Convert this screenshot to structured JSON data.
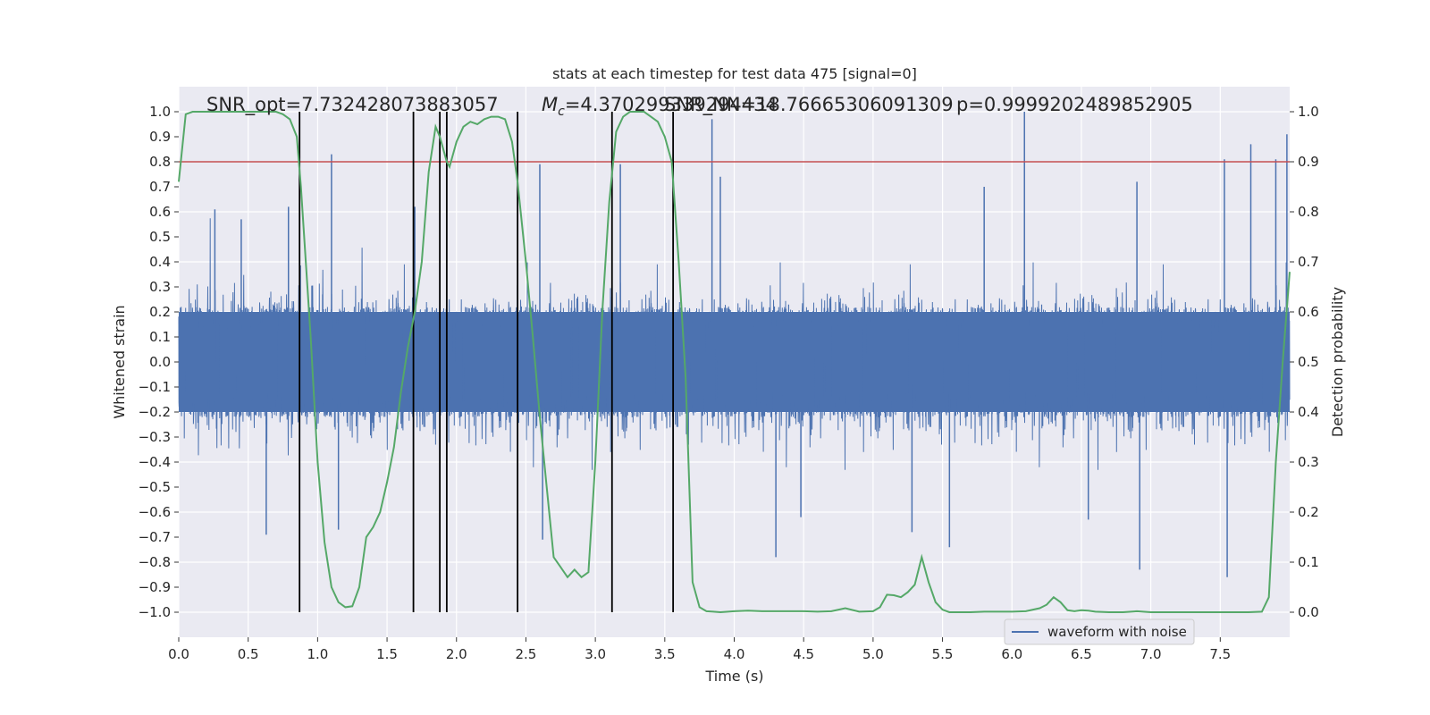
{
  "chart_data": {
    "type": "line",
    "title": "stats at each timestep for test data 475 [signal=0]",
    "xlabel": "Time (s)",
    "ylabel": "Whitened strain",
    "ylabel_right": "Detection probability",
    "xlim": [
      0.0,
      8.0
    ],
    "ylim": [
      -1.1,
      1.1
    ],
    "ylim_right": [
      -0.05,
      1.05
    ],
    "x_ticks": [
      "0.0",
      "0.5",
      "1.0",
      "1.5",
      "2.0",
      "2.5",
      "3.0",
      "3.5",
      "4.0",
      "4.5",
      "5.0",
      "5.5",
      "6.0",
      "6.5",
      "7.0",
      "7.5"
    ],
    "y_ticks": [
      "1.0",
      "0.9",
      "0.8",
      "0.7",
      "0.6",
      "0.5",
      "0.4",
      "0.3",
      "0.2",
      "0.1",
      "0.0",
      "−0.1",
      "−0.2",
      "−0.3",
      "−0.4",
      "−0.5",
      "−0.6",
      "−0.7",
      "−0.8",
      "−0.9",
      "−1.0"
    ],
    "y_ticks_right": [
      "1.0",
      "0.9",
      "0.8",
      "0.7",
      "0.6",
      "0.5",
      "0.4",
      "0.3",
      "0.2",
      "0.1",
      "0.0"
    ],
    "annotations": {
      "snr_opt": "SNR_opt=7.732428073883057",
      "mc_symbol": "M",
      "mc_sub": "c",
      "mc_value": "=4.370299339294434",
      "snr_nn": "SNR_NN=18.76665306091309",
      "p": "p=0.9999202489852905"
    },
    "legend": {
      "label": "waveform with noise",
      "placement": "lower-right"
    },
    "threshold": {
      "value": 0.9,
      "axis": "right",
      "color": "#c44e52"
    },
    "vertical_lines": [
      0.87,
      1.69,
      1.88,
      1.93,
      2.44,
      3.12,
      3.56
    ],
    "vertical_line_range": [
      -1.0,
      1.0
    ],
    "noise": {
      "name": "waveform with noise",
      "color": "#4c72b0",
      "duration": 8.0,
      "core_amplitude": 0.2,
      "typical_amplitude": 0.35,
      "spikes": [
        {
          "x": 0.26,
          "y": 0.61
        },
        {
          "x": 0.45,
          "y": 0.57
        },
        {
          "x": 0.79,
          "y": 0.62
        },
        {
          "x": 1.1,
          "y": 0.83
        },
        {
          "x": 1.7,
          "y": 0.62
        },
        {
          "x": 2.6,
          "y": 0.79
        },
        {
          "x": 3.18,
          "y": 0.79
        },
        {
          "x": 3.84,
          "y": 0.97
        },
        {
          "x": 6.09,
          "y": 1.0
        },
        {
          "x": 7.53,
          "y": 0.81
        },
        {
          "x": 7.72,
          "y": 0.87
        },
        {
          "x": 7.9,
          "y": 0.81
        },
        {
          "x": 7.98,
          "y": 0.91
        },
        {
          "x": 3.9,
          "y": 0.74
        },
        {
          "x": 5.8,
          "y": 0.7
        },
        {
          "x": 6.9,
          "y": 0.72
        },
        {
          "x": 4.3,
          "y": -0.78
        },
        {
          "x": 5.55,
          "y": -0.74
        },
        {
          "x": 6.92,
          "y": -0.83
        },
        {
          "x": 7.55,
          "y": -0.86
        },
        {
          "x": 0.63,
          "y": -0.69
        },
        {
          "x": 1.15,
          "y": -0.67
        },
        {
          "x": 2.62,
          "y": -0.71
        },
        {
          "x": 4.48,
          "y": -0.62
        },
        {
          "x": 5.28,
          "y": -0.68
        },
        {
          "x": 6.55,
          "y": -0.63
        }
      ]
    },
    "probability": {
      "name": "detection probability",
      "color": "#55a868",
      "x": [
        0.0,
        0.05,
        0.1,
        0.2,
        0.3,
        0.4,
        0.5,
        0.6,
        0.65,
        0.7,
        0.75,
        0.8,
        0.85,
        0.88,
        0.95,
        1.0,
        1.05,
        1.1,
        1.15,
        1.2,
        1.25,
        1.3,
        1.35,
        1.4,
        1.45,
        1.5,
        1.55,
        1.6,
        1.65,
        1.7,
        1.75,
        1.8,
        1.85,
        1.88,
        1.93,
        1.95,
        2.0,
        2.05,
        2.1,
        2.15,
        2.2,
        2.25,
        2.3,
        2.35,
        2.4,
        2.44,
        2.5,
        2.55,
        2.6,
        2.65,
        2.7,
        2.75,
        2.8,
        2.85,
        2.9,
        2.95,
        3.0,
        3.05,
        3.1,
        3.15,
        3.2,
        3.25,
        3.3,
        3.35,
        3.4,
        3.45,
        3.5,
        3.55,
        3.6,
        3.65,
        3.7,
        3.75,
        3.8,
        3.85,
        3.9,
        4.0,
        4.1,
        4.2,
        4.3,
        4.4,
        4.5,
        4.6,
        4.7,
        4.8,
        4.9,
        5.0,
        5.05,
        5.1,
        5.15,
        5.2,
        5.25,
        5.3,
        5.35,
        5.4,
        5.45,
        5.5,
        5.55,
        5.6,
        5.7,
        5.8,
        5.9,
        6.0,
        6.1,
        6.2,
        6.25,
        6.3,
        6.35,
        6.4,
        6.45,
        6.5,
        6.55,
        6.6,
        6.7,
        6.8,
        6.9,
        7.0,
        7.1,
        7.2,
        7.3,
        7.4,
        7.5,
        7.6,
        7.7,
        7.8,
        7.85,
        7.9,
        7.95,
        8.0
      ],
      "y": [
        0.86,
        0.995,
        1.0,
        1.0,
        1.0,
        1.0,
        1.0,
        1.0,
        1.0,
        1.0,
        0.995,
        0.985,
        0.95,
        0.85,
        0.55,
        0.3,
        0.14,
        0.05,
        0.02,
        0.01,
        0.012,
        0.05,
        0.15,
        0.17,
        0.2,
        0.26,
        0.33,
        0.44,
        0.53,
        0.6,
        0.7,
        0.88,
        0.97,
        0.95,
        0.9,
        0.89,
        0.94,
        0.97,
        0.98,
        0.975,
        0.985,
        0.99,
        0.99,
        0.985,
        0.94,
        0.86,
        0.7,
        0.55,
        0.39,
        0.25,
        0.11,
        0.09,
        0.07,
        0.085,
        0.07,
        0.08,
        0.3,
        0.6,
        0.82,
        0.96,
        0.99,
        1.0,
        1.0,
        1.0,
        0.99,
        0.98,
        0.95,
        0.9,
        0.7,
        0.47,
        0.06,
        0.01,
        0.002,
        0.001,
        0.0,
        0.002,
        0.003,
        0.002,
        0.002,
        0.002,
        0.002,
        0.001,
        0.002,
        0.008,
        0.001,
        0.002,
        0.01,
        0.035,
        0.034,
        0.03,
        0.04,
        0.055,
        0.11,
        0.06,
        0.02,
        0.005,
        0.0,
        0.0,
        0.0,
        0.001,
        0.001,
        0.001,
        0.002,
        0.008,
        0.015,
        0.03,
        0.02,
        0.004,
        0.002,
        0.004,
        0.003,
        0.001,
        0.0,
        0.0,
        0.002,
        0.0,
        0.0,
        0.0,
        0.0,
        0.0,
        0.0,
        0.0,
        0.0,
        0.001,
        0.03,
        0.3,
        0.5,
        0.68
      ]
    }
  }
}
